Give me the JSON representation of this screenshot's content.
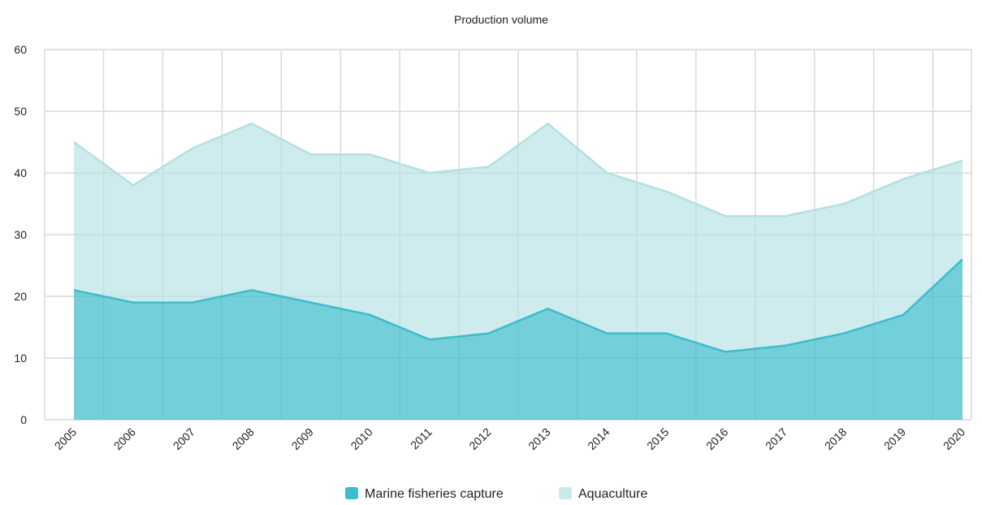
{
  "chart_data": {
    "type": "area",
    "stacked": true,
    "title": "Production volume",
    "xlabel": "",
    "ylabel": "",
    "x": [
      "2005",
      "2006",
      "2007",
      "2008",
      "2009",
      "2010",
      "2011",
      "2012",
      "2013",
      "2014",
      "2015",
      "2016",
      "2017",
      "2018",
      "2019",
      "2020"
    ],
    "ylim": [
      0,
      60
    ],
    "yticks": [
      0,
      10,
      20,
      30,
      40,
      50,
      60
    ],
    "grid": true,
    "legend_position": "bottom",
    "series": [
      {
        "name": "Marine fisheries capture",
        "color": "#3dbccb",
        "values": [
          21,
          19,
          19,
          21,
          19,
          17,
          13,
          14,
          18,
          14,
          14,
          11,
          12,
          14,
          17,
          26
        ]
      },
      {
        "name": "Aquaculture",
        "color": "#b3e0e3",
        "totals": [
          45,
          38,
          44,
          48,
          43,
          43,
          40,
          41,
          48,
          40,
          37,
          33,
          33,
          35,
          39,
          42
        ],
        "values": [
          24,
          19,
          25,
          27,
          24,
          26,
          27,
          27,
          30,
          26,
          23,
          22,
          21,
          21,
          22,
          16
        ]
      }
    ]
  }
}
